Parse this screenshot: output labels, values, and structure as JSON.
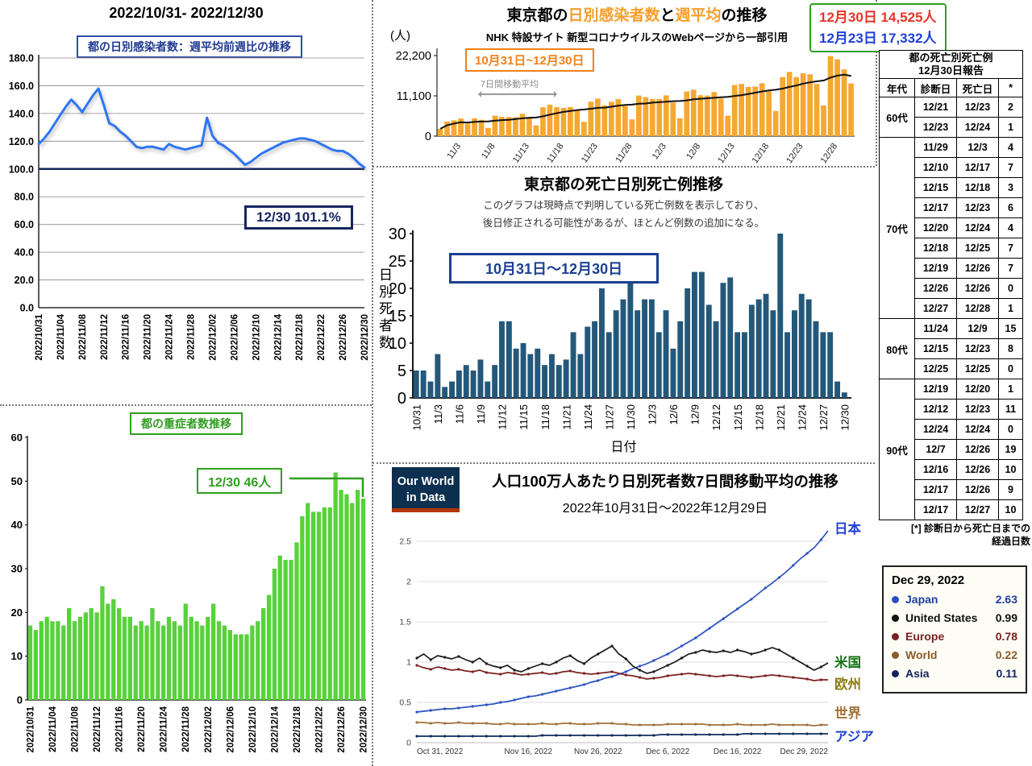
{
  "left_title": "2022/10/31- 2022/12/30",
  "chart_data": [
    {
      "name": "tokyo-weekly-ratio",
      "type": "line",
      "title": "都の日別感染者数：週平均前週比の推移",
      "ylim": [
        0,
        180
      ],
      "ytick_step": 20,
      "baseline": 100,
      "line_color": "#2E76F2",
      "x_tick_every": 4,
      "x_tick_labels": [
        "2022/10/31",
        "2022/11/04",
        "2022/11/08",
        "2022/11/12",
        "2022/11/16",
        "2022/11/20",
        "2022/11/24",
        "2022/11/28",
        "2022/12/02",
        "2022/12/06",
        "2022/12/10",
        "2022/12/14",
        "2022/12/18",
        "2022/12/22",
        "2022/12/26",
        "2022/12/30"
      ],
      "values": [
        118,
        122,
        127,
        133,
        139,
        145,
        150,
        146,
        141,
        147,
        153,
        158,
        146,
        133,
        131,
        127,
        124,
        120,
        116,
        115,
        116,
        116,
        115,
        114,
        118,
        116,
        115,
        114,
        115,
        116,
        117,
        137,
        124,
        119,
        117,
        114,
        111,
        107,
        103,
        105,
        108,
        111,
        113,
        115,
        117,
        119,
        120,
        121,
        122,
        122,
        121,
        120,
        118,
        116,
        114,
        113,
        113,
        111,
        108,
        104,
        101.1
      ],
      "annotation": "12/30 101.1%"
    },
    {
      "name": "tokyo-severe-cases",
      "type": "bar",
      "title": "都の重症者数推移",
      "ylim": [
        0,
        60
      ],
      "ytick_step": 10,
      "bar_color": "#57D23A",
      "x_tick_every": 4,
      "x_tick_labels": [
        "2022/10/31",
        "2022/11/04",
        "2022/11/08",
        "2022/11/12",
        "2022/11/16",
        "2022/11/20",
        "2022/11/24",
        "2022/11/28",
        "2022/12/02",
        "2022/12/06",
        "2022/12/10",
        "2022/12/14",
        "2022/12/18",
        "2022/12/22",
        "2022/12/26",
        "2022/12/30"
      ],
      "values": [
        17,
        16,
        18,
        19,
        18,
        18,
        17,
        21,
        18,
        19,
        20,
        21,
        20,
        26,
        22,
        23,
        21,
        19,
        19,
        17,
        18,
        17,
        21,
        18,
        17,
        19,
        18,
        17,
        22,
        19,
        18,
        17,
        19,
        22,
        18,
        17,
        16,
        15,
        15,
        15,
        17,
        18,
        21,
        24,
        30,
        33,
        32,
        32,
        36,
        42,
        45,
        43,
        43,
        44,
        44,
        52,
        48,
        47,
        45,
        48,
        46
      ],
      "annotation": "12/30 46人"
    },
    {
      "name": "tokyo-daily-infections",
      "type": "bar+line",
      "title_parts": [
        {
          "text": "東京都の",
          "color": "#000000"
        },
        {
          "text": "日別感染者数",
          "color": "#F59E2B"
        },
        {
          "text": "と",
          "color": "#000000"
        },
        {
          "text": "週平均",
          "color": "#F59E2B"
        },
        {
          "text": "の推移",
          "color": "#000000"
        }
      ],
      "subtitle": "NHK 特設サイト 新型コロナウイルスのWebページから一部引用",
      "unit_label": "(人)",
      "range_label": "10月31日~12月30日",
      "ma_label": "7日間移動平均",
      "ylim": [
        0,
        22200
      ],
      "yticks": [
        0,
        11100,
        22200
      ],
      "y_tick_labels": [
        "0",
        "11,100",
        "22,200"
      ],
      "bar_color": "#F5A832",
      "ma_color": "#111111",
      "x_tick_start": 3,
      "x_tick_every": 5,
      "x_tick_labels": [
        "11/3",
        "11/8",
        "11/13",
        "11/18",
        "11/23",
        "11/28",
        "12/3",
        "12/8",
        "12/13",
        "12/18",
        "12/23",
        "12/28"
      ],
      "values": [
        2019,
        4025,
        4347,
        4867,
        3489,
        4899,
        4515,
        2262,
        5639,
        5328,
        5254,
        5220,
        6177,
        5320,
        2955,
        7969,
        8665,
        7969,
        7777,
        8021,
        7044,
        3929,
        9486,
        10346,
        8428,
        9457,
        10190,
        8292,
        4619,
        11196,
        10734,
        10205,
        10244,
        11244,
        9259,
        4943,
        12332,
        12811,
        11283,
        11191,
        12133,
        10346,
        5639,
        14104,
        14399,
        13556,
        13646,
        14558,
        12327,
        6922,
        16273,
        17687,
        16274,
        17332,
        17020,
        14393,
        8428,
        22063,
        21186,
        18372,
        14525
      ],
      "summary": {
        "line1": {
          "text": "12月30日 14,525人",
          "color": "#E8332A"
        },
        "line2": {
          "text": "12月23日 17,332人",
          "color": "#2140D6"
        },
        "border_color": "#2F9E1F"
      }
    },
    {
      "name": "tokyo-deaths-by-date",
      "type": "bar",
      "title": "東京都の死亡日別死亡例推移",
      "subtitle_lines": [
        "このグラフは現時点で判明している死亡例数を表示しており、",
        "後日修正される可能性があるが、ほとんど例数の追加になる。"
      ],
      "range_label": "10月31日〜12月30日",
      "ylabel": "日別死者数",
      "xlabel": "日付",
      "ylim": [
        0,
        30
      ],
      "ytick_step": 5,
      "bar_color": "#24587A",
      "x_tick_every": 3,
      "x_tick_labels": [
        "10/31",
        "11/3",
        "11/6",
        "11/9",
        "11/12",
        "11/15",
        "11/18",
        "11/21",
        "11/24",
        "11/27",
        "11/30",
        "12/3",
        "12/6",
        "12/9",
        "12/12",
        "12/15",
        "12/18",
        "12/21",
        "12/24",
        "12/27",
        "12/30"
      ],
      "values": [
        5,
        5,
        3,
        8,
        2,
        3,
        5,
        6,
        5,
        7,
        3,
        6,
        14,
        14,
        9,
        10,
        8,
        9,
        6,
        8,
        6,
        7,
        12,
        8,
        13,
        14,
        20,
        12,
        16,
        18,
        21,
        16,
        18,
        18,
        12,
        16,
        9,
        14,
        20,
        23,
        23,
        17,
        14,
        21,
        22,
        12,
        12,
        17,
        18,
        19,
        16,
        30,
        12,
        16,
        19,
        18,
        14,
        12,
        12,
        3,
        1
      ]
    },
    {
      "name": "owid-deaths-per-million",
      "type": "line-multi",
      "logo_lines": [
        "Our World",
        "in Data"
      ],
      "title": "人口100万人あたり日別死者数7日間移動平均の推移",
      "subtitle": "2022年10月31日〜2022年12月29日",
      "ylim": [
        0,
        2.7
      ],
      "yticks": [
        0,
        0.5,
        1,
        1.5,
        2,
        2.5
      ],
      "x_tick_labels": [
        "Oct 31, 2022",
        "Nov 16, 2022",
        "Nov 26, 2022",
        "Dec 6, 2022",
        "Dec 16, 2022",
        "Dec 29, 2022"
      ],
      "x_tick_positions": [
        0,
        16,
        26,
        36,
        46,
        59
      ],
      "series": [
        {
          "name": "Japan",
          "jp": "日本",
          "color": "#2A52BE",
          "label_color": "#1F3FD4",
          "label_dy": -2,
          "values": [
            0.38,
            0.39,
            0.4,
            0.41,
            0.42,
            0.42,
            0.43,
            0.44,
            0.45,
            0.46,
            0.47,
            0.48,
            0.5,
            0.51,
            0.53,
            0.55,
            0.57,
            0.58,
            0.6,
            0.62,
            0.64,
            0.66,
            0.68,
            0.7,
            0.72,
            0.75,
            0.77,
            0.8,
            0.82,
            0.85,
            0.88,
            0.92,
            0.95,
            0.98,
            1.02,
            1.06,
            1.1,
            1.15,
            1.2,
            1.25,
            1.3,
            1.36,
            1.42,
            1.48,
            1.54,
            1.6,
            1.66,
            1.72,
            1.78,
            1.85,
            1.92,
            1.98,
            2.05,
            2.12,
            2.2,
            2.28,
            2.35,
            2.42,
            2.52,
            2.63
          ]
        },
        {
          "name": "United States",
          "jp": "米国",
          "color": "#1A1A1A",
          "label_color": "#157015",
          "label_dy": 0,
          "values": [
            1.05,
            1.1,
            1.03,
            1.08,
            1.06,
            1.04,
            1.07,
            1.03,
            1.0,
            1.05,
            0.98,
            0.95,
            0.93,
            0.96,
            0.9,
            0.88,
            0.92,
            0.95,
            0.98,
            0.96,
            1.0,
            1.05,
            1.08,
            1.02,
            0.98,
            1.05,
            1.1,
            1.15,
            1.2,
            1.1,
            1.04,
            0.95,
            0.9,
            0.86,
            0.88,
            0.92,
            0.96,
            1.0,
            1.05,
            1.1,
            1.12,
            1.15,
            1.13,
            1.12,
            1.14,
            1.12,
            1.15,
            1.13,
            1.1,
            1.12,
            1.15,
            1.18,
            1.15,
            1.1,
            1.05,
            1.0,
            0.95,
            0.9,
            0.94,
            0.99
          ]
        },
        {
          "name": "Europe",
          "jp": "欧州",
          "color": "#7A2020",
          "label_color": "#8A7A10",
          "label_dy": 6,
          "values": [
            0.96,
            0.93,
            0.91,
            0.94,
            0.92,
            0.9,
            0.91,
            0.89,
            0.88,
            0.9,
            0.87,
            0.86,
            0.85,
            0.87,
            0.86,
            0.84,
            0.85,
            0.86,
            0.87,
            0.85,
            0.86,
            0.88,
            0.89,
            0.87,
            0.86,
            0.85,
            0.86,
            0.87,
            0.88,
            0.86,
            0.84,
            0.83,
            0.81,
            0.79,
            0.8,
            0.81,
            0.83,
            0.84,
            0.85,
            0.86,
            0.85,
            0.84,
            0.83,
            0.82,
            0.83,
            0.84,
            0.83,
            0.82,
            0.81,
            0.82,
            0.83,
            0.84,
            0.83,
            0.82,
            0.81,
            0.8,
            0.79,
            0.77,
            0.78,
            0.78
          ]
        },
        {
          "name": "World",
          "jp": "世界",
          "color": "#A0713A",
          "label_color": "#A0713A",
          "label_dy": -14,
          "values": [
            0.25,
            0.25,
            0.24,
            0.25,
            0.24,
            0.24,
            0.25,
            0.24,
            0.24,
            0.24,
            0.24,
            0.23,
            0.23,
            0.24,
            0.23,
            0.23,
            0.23,
            0.23,
            0.24,
            0.23,
            0.23,
            0.24,
            0.24,
            0.23,
            0.23,
            0.23,
            0.24,
            0.24,
            0.24,
            0.23,
            0.23,
            0.22,
            0.22,
            0.22,
            0.22,
            0.22,
            0.23,
            0.23,
            0.23,
            0.23,
            0.23,
            0.23,
            0.22,
            0.22,
            0.22,
            0.22,
            0.23,
            0.22,
            0.22,
            0.22,
            0.22,
            0.23,
            0.22,
            0.22,
            0.22,
            0.22,
            0.22,
            0.21,
            0.22,
            0.22
          ]
        },
        {
          "name": "Asia",
          "jp": "アジア",
          "color": "#0F2D5E",
          "label_color": "#2244CC",
          "label_dy": 4,
          "values": [
            0.08,
            0.08,
            0.08,
            0.08,
            0.08,
            0.08,
            0.08,
            0.08,
            0.08,
            0.08,
            0.08,
            0.08,
            0.08,
            0.08,
            0.08,
            0.08,
            0.08,
            0.08,
            0.09,
            0.09,
            0.09,
            0.09,
            0.09,
            0.09,
            0.09,
            0.09,
            0.09,
            0.09,
            0.09,
            0.09,
            0.09,
            0.09,
            0.09,
            0.09,
            0.09,
            0.1,
            0.1,
            0.1,
            0.1,
            0.1,
            0.1,
            0.1,
            0.1,
            0.1,
            0.1,
            0.1,
            0.1,
            0.11,
            0.11,
            0.11,
            0.11,
            0.11,
            0.11,
            0.11,
            0.11,
            0.11,
            0.11,
            0.11,
            0.11,
            0.11
          ]
        }
      ],
      "legend": {
        "title": "Dec 29, 2022",
        "items": [
          {
            "name": "Japan",
            "value": "2.63",
            "color": "#2A52BE",
            "text_color": "#1F3FA0"
          },
          {
            "name": "United States",
            "value": "0.99",
            "color": "#111111",
            "text_color": "#111111"
          },
          {
            "name": "Europe",
            "value": "0.78",
            "color": "#7A1F1F",
            "text_color": "#7A1F1F"
          },
          {
            "name": "World",
            "value": "0.22",
            "color": "#8B5A2B",
            "text_color": "#8B5A2B"
          },
          {
            "name": "Asia",
            "value": "0.11",
            "color": "#14235A",
            "text_color": "#14235A"
          }
        ]
      }
    }
  ],
  "table": {
    "title_lines": [
      "都の死亡別死亡例",
      "12月30日報告"
    ],
    "headers": [
      "年代",
      "診断日",
      "死亡日",
      "*"
    ],
    "groups": [
      {
        "age": "60代",
        "rows": [
          [
            "12/21",
            "12/23",
            "2"
          ],
          [
            "12/23",
            "12/24",
            "1"
          ]
        ]
      },
      {
        "age": "70代",
        "rows": [
          [
            "11/29",
            "12/3",
            "4"
          ],
          [
            "12/10",
            "12/17",
            "7"
          ],
          [
            "12/15",
            "12/18",
            "3"
          ],
          [
            "12/17",
            "12/23",
            "6"
          ],
          [
            "12/20",
            "12/24",
            "4"
          ],
          [
            "12/18",
            "12/25",
            "7"
          ],
          [
            "12/19",
            "12/26",
            "7"
          ],
          [
            "12/26",
            "12/26",
            "0"
          ],
          [
            "12/27",
            "12/28",
            "1"
          ]
        ]
      },
      {
        "age": "80代",
        "rows": [
          [
            "11/24",
            "12/9",
            "15"
          ],
          [
            "12/15",
            "12/23",
            "8"
          ],
          [
            "12/25",
            "12/25",
            "0"
          ]
        ]
      },
      {
        "age": "90代",
        "rows": [
          [
            "12/19",
            "12/20",
            "1"
          ],
          [
            "12/12",
            "12/23",
            "11"
          ],
          [
            "12/24",
            "12/24",
            "0"
          ],
          [
            "12/7",
            "12/26",
            "19"
          ],
          [
            "12/16",
            "12/26",
            "10"
          ],
          [
            "12/17",
            "12/26",
            "9"
          ],
          [
            "12/17",
            "12/27",
            "10"
          ]
        ]
      }
    ],
    "footnote_lines": [
      "[*] 診断日から死亡日までの",
      "経過日数"
    ]
  }
}
